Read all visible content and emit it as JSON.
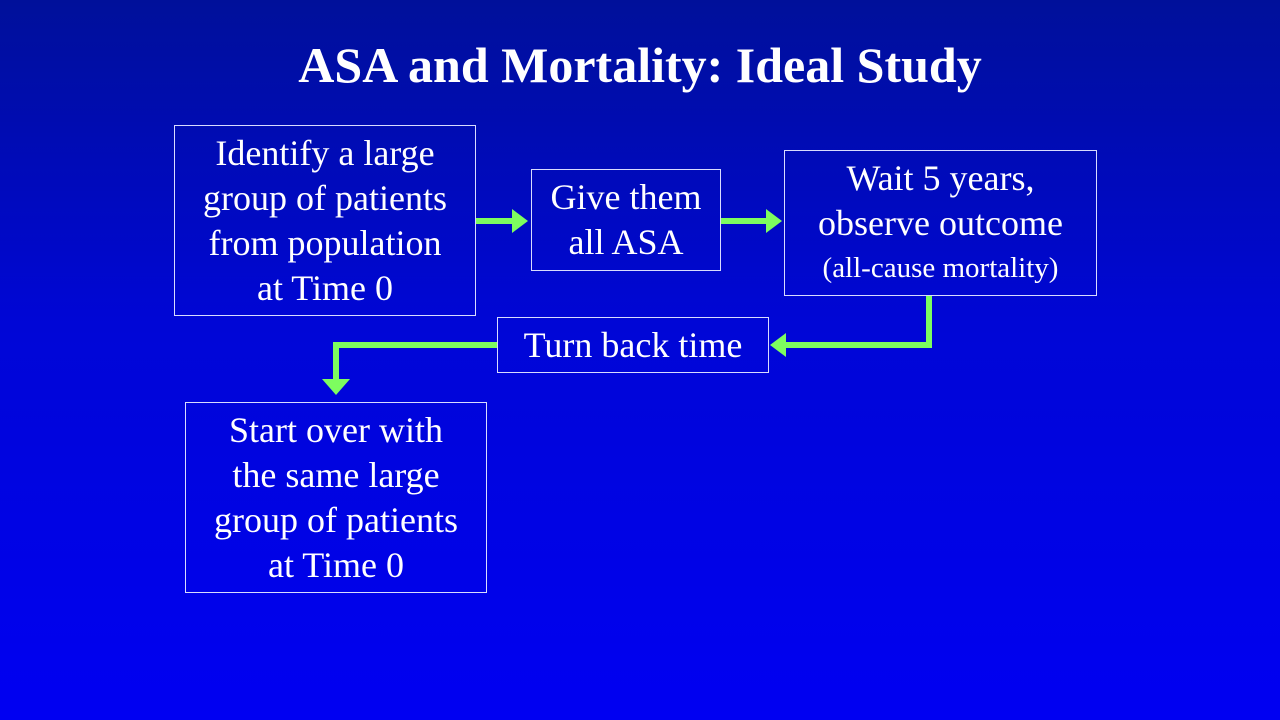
{
  "slide": {
    "title": "ASA and Mortality: Ideal Study"
  },
  "diagram": {
    "arrow_color": "#7dfd5f",
    "nodes": {
      "identify": {
        "lines": [
          "Identify a large",
          "group of patients",
          "from population",
          "at Time 0"
        ]
      },
      "give": {
        "lines": [
          "Give them",
          "all ASA"
        ]
      },
      "wait": {
        "lines": [
          "Wait 5 years,",
          "observe outcome"
        ],
        "note": "(all-cause mortality)"
      },
      "turn_back": {
        "lines": [
          "Turn back time"
        ]
      },
      "start_over": {
        "lines": [
          "Start over with",
          "the same large",
          "group of patients",
          "at Time 0"
        ]
      }
    },
    "edges": [
      {
        "from": "identify",
        "to": "give"
      },
      {
        "from": "give",
        "to": "wait"
      },
      {
        "from": "wait",
        "to": "turn_back"
      },
      {
        "from": "turn_back",
        "to": "start_over"
      }
    ]
  }
}
